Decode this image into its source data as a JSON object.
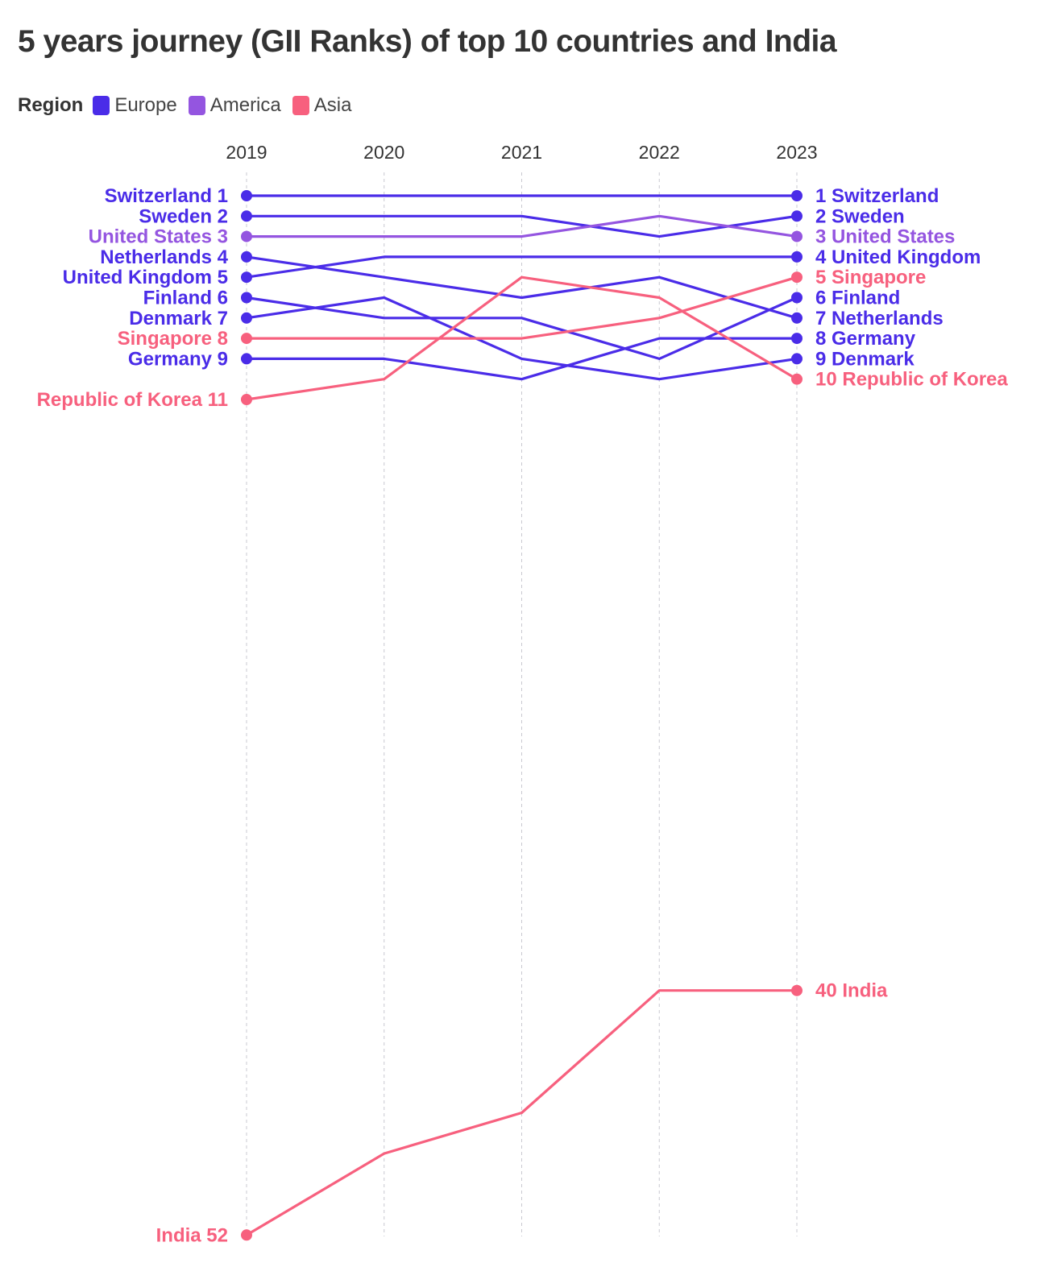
{
  "chart_data": {
    "type": "line",
    "title": "5 years journey (GII Ranks) of top 10 countries and India",
    "legend": {
      "title": "Region",
      "placement": "top-left",
      "items": [
        {
          "name": "Europe",
          "color": "#4a2ce8"
        },
        {
          "name": "America",
          "color": "#9455e0"
        },
        {
          "name": "Asia",
          "color": "#f7607e"
        }
      ]
    },
    "x": [
      "2019",
      "2020",
      "2021",
      "2022",
      "2023"
    ],
    "y_scale": "rank (1 at top)",
    "grid": "vertical dashed lines at each year",
    "series": [
      {
        "name": "Switzerland",
        "region": "Europe",
        "values": [
          1,
          1,
          1,
          1,
          1
        ]
      },
      {
        "name": "Sweden",
        "region": "Europe",
        "values": [
          2,
          2,
          2,
          3,
          2
        ]
      },
      {
        "name": "United States",
        "region": "America",
        "values": [
          3,
          3,
          3,
          2,
          3
        ]
      },
      {
        "name": "Netherlands",
        "region": "Europe",
        "values": [
          4,
          5,
          6,
          5,
          7
        ]
      },
      {
        "name": "United Kingdom",
        "region": "Europe",
        "values": [
          5,
          4,
          4,
          4,
          4
        ]
      },
      {
        "name": "Finland",
        "region": "Europe",
        "values": [
          6,
          7,
          7,
          9,
          6
        ]
      },
      {
        "name": "Denmark",
        "region": "Europe",
        "values": [
          7,
          6,
          9,
          10,
          9
        ]
      },
      {
        "name": "Singapore",
        "region": "Asia",
        "values": [
          8,
          8,
          8,
          7,
          5
        ]
      },
      {
        "name": "Germany",
        "region": "Europe",
        "values": [
          9,
          9,
          10,
          8,
          8
        ]
      },
      {
        "name": "Republic of Korea",
        "region": "Asia",
        "values": [
          11,
          10,
          5,
          6,
          10
        ]
      },
      {
        "name": "India",
        "region": "Asia",
        "values": [
          52,
          48,
          46,
          40,
          40
        ]
      }
    ]
  }
}
